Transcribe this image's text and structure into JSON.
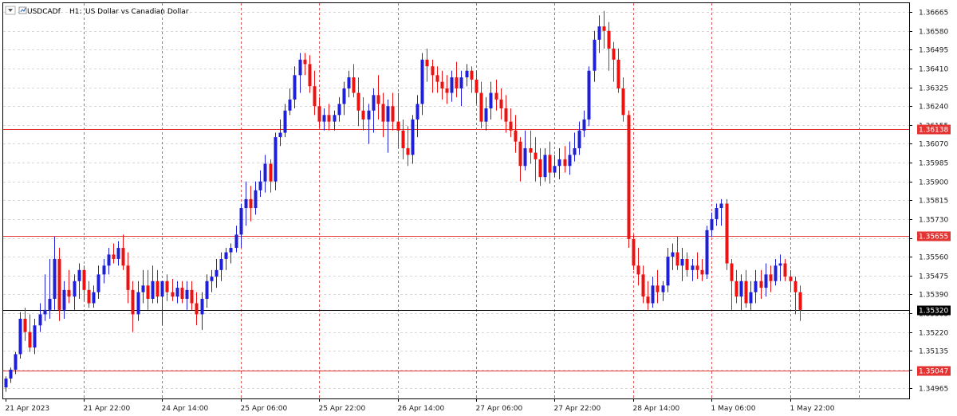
{
  "header": {
    "symbol": "USDCADf",
    "timeframe": "H1:",
    "description": "US Dollar vs Canadian Dollar"
  },
  "colors": {
    "bull": "#1f1fd8",
    "bear": "#ee1111",
    "grid": "#d8d8d8",
    "period_separator": "#e05a5a",
    "hline": "#e33333",
    "current_line": "#000000",
    "frame": "#000000"
  },
  "chart_data": {
    "type": "candlestick",
    "timeframe": "H1",
    "ylim": [
      1.3492,
      1.36705
    ],
    "y_ticks": [
      "1.36665",
      "1.36580",
      "1.36495",
      "1.36410",
      "1.36325",
      "1.36240",
      "1.36155",
      "1.36070",
      "1.35985",
      "1.35900",
      "1.35815",
      "1.35730",
      "1.35645",
      "1.35560",
      "1.35475",
      "1.35390",
      "1.35305",
      "1.35220",
      "1.35135",
      "1.35050",
      "1.34965"
    ],
    "x_ticks": [
      {
        "label": "21 Apr 2023",
        "bar": 0
      },
      {
        "label": "21 Apr 22:00",
        "bar": 16
      },
      {
        "label": "24 Apr 14:00",
        "bar": 32
      },
      {
        "label": "25 Apr 06:00",
        "bar": 48
      },
      {
        "label": "25 Apr 22:00",
        "bar": 64
      },
      {
        "label": "26 Apr 14:00",
        "bar": 80
      },
      {
        "label": "27 Apr 06:00",
        "bar": 96
      },
      {
        "label": "27 Apr 22:00",
        "bar": 112
      },
      {
        "label": "28 Apr 14:00",
        "bar": 128
      },
      {
        "label": "1 May 06:00",
        "bar": 144
      },
      {
        "label": "1 May 22:00",
        "bar": 160
      }
    ],
    "horizontal_lines": [
      {
        "price": 1.36138,
        "label": "1.36138",
        "kind": "level"
      },
      {
        "price": 1.35655,
        "label": "1.35655",
        "kind": "level"
      },
      {
        "price": 1.3532,
        "label": "1.35320",
        "kind": "current"
      },
      {
        "price": 1.35047,
        "label": "1.35047",
        "kind": "level"
      }
    ],
    "candles": [
      [
        1.3497,
        1.3502,
        1.3495,
        1.3501
      ],
      [
        1.3501,
        1.3506,
        1.3499,
        1.3505
      ],
      [
        1.3505,
        1.3513,
        1.3503,
        1.3512
      ],
      [
        1.3512,
        1.3531,
        1.351,
        1.3528
      ],
      [
        1.3528,
        1.3533,
        1.3518,
        1.3522
      ],
      [
        1.3522,
        1.353,
        1.3513,
        1.3515
      ],
      [
        1.3515,
        1.3528,
        1.3512,
        1.3525
      ],
      [
        1.3525,
        1.3535,
        1.3522,
        1.353
      ],
      [
        1.353,
        1.3548,
        1.3527,
        1.3532
      ],
      [
        1.3532,
        1.3555,
        1.3528,
        1.3537
      ],
      [
        1.3537,
        1.3565,
        1.3532,
        1.3555
      ],
      [
        1.3555,
        1.356,
        1.3527,
        1.3532
      ],
      [
        1.3532,
        1.3545,
        1.3528,
        1.3541
      ],
      [
        1.3541,
        1.355,
        1.3535,
        1.3538
      ],
      [
        1.3538,
        1.3548,
        1.3532,
        1.3545
      ],
      [
        1.3545,
        1.3553,
        1.3537,
        1.355
      ],
      [
        1.355,
        1.3552,
        1.3536,
        1.3541
      ],
      [
        1.3541,
        1.3545,
        1.3533,
        1.3535
      ],
      [
        1.3535,
        1.3543,
        1.3533,
        1.354
      ],
      [
        1.354,
        1.3552,
        1.3537,
        1.3548
      ],
      [
        1.3548,
        1.3555,
        1.3544,
        1.3552
      ],
      [
        1.3552,
        1.356,
        1.3548,
        1.3557
      ],
      [
        1.3557,
        1.3562,
        1.3553,
        1.3555
      ],
      [
        1.3555,
        1.3563,
        1.3552,
        1.356
      ],
      [
        1.356,
        1.3566,
        1.355,
        1.3552
      ],
      [
        1.3552,
        1.3558,
        1.3535,
        1.3541
      ],
      [
        1.3541,
        1.3545,
        1.3522,
        1.353
      ],
      [
        1.353,
        1.3545,
        1.3527,
        1.354
      ],
      [
        1.354,
        1.355,
        1.3535,
        1.3543
      ],
      [
        1.3543,
        1.355,
        1.3532,
        1.3537
      ],
      [
        1.3537,
        1.3552,
        1.3535,
        1.3545
      ],
      [
        1.3545,
        1.355,
        1.3535,
        1.3538
      ],
      [
        1.3538,
        1.3545,
        1.3525,
        1.3545
      ],
      [
        1.3545,
        1.3548,
        1.3536,
        1.354
      ],
      [
        1.354,
        1.3546,
        1.3536,
        1.3538
      ],
      [
        1.3538,
        1.3545,
        1.3535,
        1.3542
      ],
      [
        1.3542,
        1.3545,
        1.3535,
        1.3537
      ],
      [
        1.3537,
        1.3545,
        1.3532,
        1.3541
      ],
      [
        1.3541,
        1.3545,
        1.3532,
        1.3535
      ],
      [
        1.3535,
        1.354,
        1.3525,
        1.353
      ],
      [
        1.353,
        1.354,
        1.3523,
        1.3537
      ],
      [
        1.3537,
        1.3548,
        1.3533,
        1.3545
      ],
      [
        1.3545,
        1.355,
        1.354,
        1.3547
      ],
      [
        1.3547,
        1.3555,
        1.3542,
        1.355
      ],
      [
        1.355,
        1.3558,
        1.3545,
        1.3555
      ],
      [
        1.3555,
        1.356,
        1.355,
        1.3558
      ],
      [
        1.3558,
        1.3562,
        1.3553,
        1.356
      ],
      [
        1.356,
        1.357,
        1.3558,
        1.3566
      ],
      [
        1.3566,
        1.358,
        1.356,
        1.3578
      ],
      [
        1.3578,
        1.359,
        1.357,
        1.3582
      ],
      [
        1.3582,
        1.3588,
        1.3572,
        1.3578
      ],
      [
        1.3578,
        1.359,
        1.3575,
        1.3586
      ],
      [
        1.3586,
        1.3595,
        1.3583,
        1.359
      ],
      [
        1.359,
        1.3602,
        1.3585,
        1.3598
      ],
      [
        1.3598,
        1.36,
        1.3585,
        1.359
      ],
      [
        1.359,
        1.3612,
        1.3586,
        1.361
      ],
      [
        1.361,
        1.3618,
        1.3606,
        1.3612
      ],
      [
        1.3612,
        1.3625,
        1.361,
        1.3622
      ],
      [
        1.3622,
        1.3632,
        1.362,
        1.3627
      ],
      [
        1.3627,
        1.3642,
        1.3623,
        1.3638
      ],
      [
        1.3638,
        1.3648,
        1.363,
        1.3645
      ],
      [
        1.3645,
        1.3648,
        1.3638,
        1.3643
      ],
      [
        1.3643,
        1.3647,
        1.363,
        1.3633
      ],
      [
        1.3633,
        1.364,
        1.362,
        1.3624
      ],
      [
        1.3624,
        1.3628,
        1.3614,
        1.3617
      ],
      [
        1.3617,
        1.3623,
        1.3613,
        1.362
      ],
      [
        1.362,
        1.3625,
        1.3613,
        1.3617
      ],
      [
        1.3617,
        1.3622,
        1.3613,
        1.362
      ],
      [
        1.362,
        1.3628,
        1.3617,
        1.3625
      ],
      [
        1.3625,
        1.3635,
        1.362,
        1.3632
      ],
      [
        1.3632,
        1.364,
        1.3628,
        1.3637
      ],
      [
        1.3637,
        1.3643,
        1.3628,
        1.363
      ],
      [
        1.363,
        1.3637,
        1.3615,
        1.3622
      ],
      [
        1.3622,
        1.3628,
        1.3613,
        1.3618
      ],
      [
        1.3618,
        1.3625,
        1.3607,
        1.3622
      ],
      [
        1.3622,
        1.3632,
        1.3612,
        1.3629
      ],
      [
        1.3629,
        1.3638,
        1.3618,
        1.3625
      ],
      [
        1.3625,
        1.363,
        1.361,
        1.3617
      ],
      [
        1.3617,
        1.3627,
        1.3603,
        1.3624
      ],
      [
        1.3624,
        1.363,
        1.3613,
        1.3617
      ],
      [
        1.3617,
        1.363,
        1.3605,
        1.3613
      ],
      [
        1.3613,
        1.3618,
        1.36,
        1.3605
      ],
      [
        1.3605,
        1.3615,
        1.3597,
        1.3602
      ],
      [
        1.3602,
        1.362,
        1.3598,
        1.3618
      ],
      [
        1.3618,
        1.3629,
        1.361,
        1.3625
      ],
      [
        1.3625,
        1.3648,
        1.362,
        1.3645
      ],
      [
        1.3645,
        1.365,
        1.3635,
        1.3642
      ],
      [
        1.3642,
        1.3645,
        1.363,
        1.3638
      ],
      [
        1.3638,
        1.3642,
        1.363,
        1.3635
      ],
      [
        1.3635,
        1.364,
        1.3627,
        1.3632
      ],
      [
        1.3632,
        1.3638,
        1.3625,
        1.363
      ],
      [
        1.363,
        1.364,
        1.3626,
        1.3637
      ],
      [
        1.3637,
        1.3644,
        1.3628,
        1.3632
      ],
      [
        1.3632,
        1.364,
        1.3624,
        1.3637
      ],
      [
        1.3637,
        1.3643,
        1.3633,
        1.364
      ],
      [
        1.364,
        1.3642,
        1.363,
        1.3636
      ],
      [
        1.3636,
        1.364,
        1.3625,
        1.363
      ],
      [
        1.363,
        1.3635,
        1.3614,
        1.3617
      ],
      [
        1.3617,
        1.3628,
        1.3613,
        1.3623
      ],
      [
        1.3623,
        1.3635,
        1.3618,
        1.363
      ],
      [
        1.363,
        1.3636,
        1.3622,
        1.3627
      ],
      [
        1.3627,
        1.3632,
        1.3618,
        1.3623
      ],
      [
        1.3623,
        1.3629,
        1.3612,
        1.3617
      ],
      [
        1.3617,
        1.3623,
        1.361,
        1.3613
      ],
      [
        1.3613,
        1.362,
        1.3603,
        1.3608
      ],
      [
        1.3608,
        1.361,
        1.359,
        1.3597
      ],
      [
        1.3597,
        1.3613,
        1.3595,
        1.3605
      ],
      [
        1.3605,
        1.3613,
        1.3598,
        1.3603
      ],
      [
        1.3603,
        1.361,
        1.359,
        1.36
      ],
      [
        1.36,
        1.3605,
        1.3588,
        1.3592
      ],
      [
        1.3592,
        1.3605,
        1.359,
        1.3602
      ],
      [
        1.3602,
        1.3608,
        1.3589,
        1.3594
      ],
      [
        1.3594,
        1.3602,
        1.3592,
        1.3597
      ],
      [
        1.3597,
        1.3605,
        1.3591,
        1.36
      ],
      [
        1.36,
        1.3606,
        1.3594,
        1.3597
      ],
      [
        1.3597,
        1.3608,
        1.3593,
        1.3602
      ],
      [
        1.3602,
        1.3612,
        1.3599,
        1.3605
      ],
      [
        1.3605,
        1.3617,
        1.3602,
        1.3613
      ],
      [
        1.3613,
        1.3622,
        1.361,
        1.3618
      ],
      [
        1.3618,
        1.3642,
        1.3615,
        1.364
      ],
      [
        1.364,
        1.3658,
        1.3635,
        1.3654
      ],
      [
        1.3654,
        1.3665,
        1.3648,
        1.366
      ],
      [
        1.366,
        1.3667,
        1.365,
        1.3658
      ],
      [
        1.3658,
        1.3662,
        1.364,
        1.365
      ],
      [
        1.365,
        1.3653,
        1.3635,
        1.3645
      ],
      [
        1.3645,
        1.365,
        1.363,
        1.3632
      ],
      [
        1.3632,
        1.3637,
        1.3617,
        1.362
      ],
      [
        1.362,
        1.3622,
        1.356,
        1.3564
      ],
      [
        1.3564,
        1.3566,
        1.355,
        1.3552
      ],
      [
        1.3552,
        1.356,
        1.3543,
        1.3548
      ],
      [
        1.3548,
        1.3552,
        1.3535,
        1.3538
      ],
      [
        1.3538,
        1.3545,
        1.3532,
        1.3535
      ],
      [
        1.3535,
        1.3547,
        1.3533,
        1.3543
      ],
      [
        1.3543,
        1.355,
        1.3535,
        1.354
      ],
      [
        1.354,
        1.3545,
        1.3536,
        1.3543
      ],
      [
        1.3543,
        1.356,
        1.354,
        1.3556
      ],
      [
        1.3556,
        1.3562,
        1.355,
        1.3558
      ],
      [
        1.3558,
        1.3565,
        1.355,
        1.3552
      ],
      [
        1.3552,
        1.356,
        1.3545,
        1.3555
      ],
      [
        1.3555,
        1.3558,
        1.3547,
        1.355
      ],
      [
        1.355,
        1.3555,
        1.3545,
        1.3552
      ],
      [
        1.3552,
        1.3558,
        1.3546,
        1.355
      ],
      [
        1.355,
        1.3555,
        1.3545,
        1.3548
      ],
      [
        1.3548,
        1.357,
        1.3546,
        1.3568
      ],
      [
        1.3568,
        1.3576,
        1.3565,
        1.3573
      ],
      [
        1.3573,
        1.358,
        1.357,
        1.3578
      ],
      [
        1.3578,
        1.3582,
        1.357,
        1.358
      ],
      [
        1.358,
        1.3582,
        1.355,
        1.3553
      ],
      [
        1.3553,
        1.3555,
        1.3532,
        1.3545
      ],
      [
        1.3545,
        1.355,
        1.3535,
        1.3538
      ],
      [
        1.3538,
        1.3548,
        1.3532,
        1.3545
      ],
      [
        1.3545,
        1.355,
        1.3533,
        1.3535
      ],
      [
        1.3535,
        1.3545,
        1.3532,
        1.354
      ],
      [
        1.354,
        1.355,
        1.3535,
        1.3545
      ],
      [
        1.3545,
        1.355,
        1.3537,
        1.3542
      ],
      [
        1.3542,
        1.3553,
        1.3538,
        1.3548
      ],
      [
        1.3548,
        1.3552,
        1.354,
        1.3545
      ],
      [
        1.3545,
        1.3555,
        1.3543,
        1.3552
      ],
      [
        1.3552,
        1.3557,
        1.3545,
        1.3553
      ],
      [
        1.3553,
        1.3555,
        1.3545,
        1.3547
      ],
      [
        1.3547,
        1.355,
        1.354,
        1.3545
      ],
      [
        1.3545,
        1.3547,
        1.353,
        1.354
      ],
      [
        1.354,
        1.3543,
        1.3527,
        1.3532
      ]
    ]
  }
}
